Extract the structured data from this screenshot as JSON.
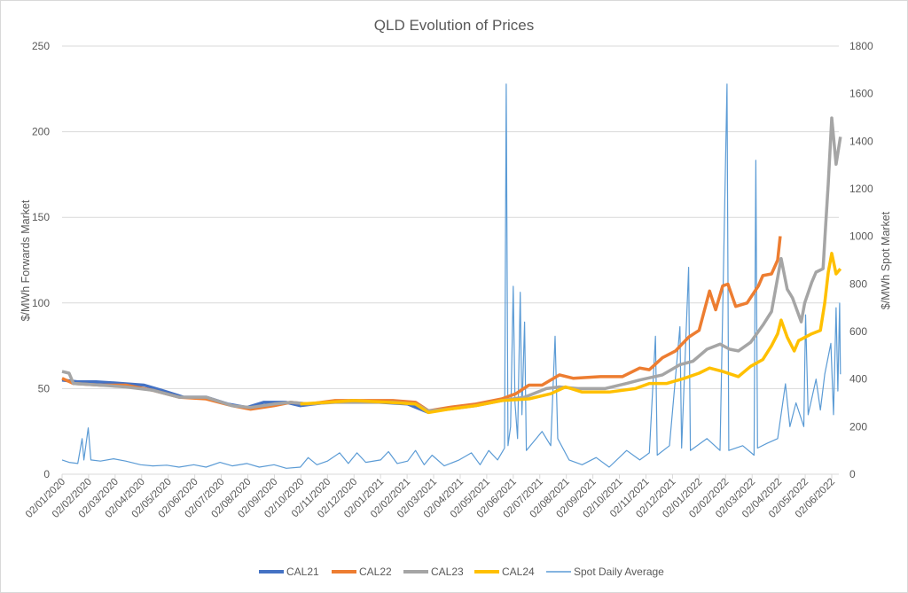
{
  "chart_data": {
    "type": "line",
    "title": "QLD Evolution of Prices",
    "ylabel": "$/MWh Forwards Market",
    "y2label": "$/MWh Spot Market",
    "ylim": [
      0,
      250
    ],
    "y2lim": [
      0,
      1800
    ],
    "yticks": [
      0,
      50,
      100,
      150,
      200,
      250
    ],
    "y2ticks": [
      0,
      200,
      400,
      600,
      800,
      1000,
      1200,
      1400,
      1600,
      1800
    ],
    "xlim": [
      "2020-01-02",
      "2022-06-02"
    ],
    "xticks": [
      "02/01/2020",
      "02/02/2020",
      "02/03/2020",
      "02/04/2020",
      "02/05/2020",
      "02/06/2020",
      "02/07/2020",
      "02/08/2020",
      "02/09/2020",
      "02/10/2020",
      "02/11/2020",
      "02/12/2020",
      "02/01/2021",
      "02/02/2021",
      "02/03/2021",
      "02/04/2021",
      "02/05/2021",
      "02/06/2021",
      "02/07/2021",
      "02/08/2021",
      "02/09/2021",
      "02/10/2021",
      "02/11/2021",
      "02/12/2021",
      "02/01/2022",
      "02/02/2022",
      "02/03/2022",
      "02/04/2022",
      "02/05/2022",
      "02/06/2022"
    ],
    "grid": true,
    "legend": "bottom",
    "series": [
      {
        "name": "CAL21",
        "axis": "left",
        "color": "#4472C4",
        "width": 3.5,
        "points": [
          [
            "2020-01-02",
            55
          ],
          [
            "2020-01-20",
            54
          ],
          [
            "2020-02-10",
            54
          ],
          [
            "2020-03-10",
            53
          ],
          [
            "2020-04-05",
            52
          ],
          [
            "2020-04-25",
            49
          ],
          [
            "2020-05-20",
            45
          ],
          [
            "2020-06-15",
            45
          ],
          [
            "2020-07-10",
            41
          ],
          [
            "2020-08-01",
            39
          ],
          [
            "2020-08-20",
            42
          ],
          [
            "2020-09-15",
            42
          ],
          [
            "2020-10-01",
            40
          ],
          [
            "2020-11-01",
            42
          ],
          [
            "2020-12-01",
            43
          ],
          [
            "2021-01-01",
            42
          ],
          [
            "2021-02-01",
            41
          ],
          [
            "2021-02-25",
            36
          ]
        ]
      },
      {
        "name": "CAL22",
        "axis": "left",
        "color": "#ED7D31",
        "width": 3.5,
        "points": [
          [
            "2020-01-02",
            56
          ],
          [
            "2020-01-15",
            53
          ],
          [
            "2020-02-15",
            52
          ],
          [
            "2020-03-15",
            52
          ],
          [
            "2020-04-15",
            49
          ],
          [
            "2020-05-15",
            45
          ],
          [
            "2020-06-15",
            44
          ],
          [
            "2020-07-15",
            40
          ],
          [
            "2020-08-05",
            38
          ],
          [
            "2020-09-01",
            40
          ],
          [
            "2020-09-20",
            42
          ],
          [
            "2020-10-10",
            41
          ],
          [
            "2020-11-10",
            43
          ],
          [
            "2020-12-10",
            43
          ],
          [
            "2021-01-15",
            43
          ],
          [
            "2021-02-10",
            42
          ],
          [
            "2021-02-25",
            37
          ],
          [
            "2021-03-20",
            39
          ],
          [
            "2021-04-20",
            41
          ],
          [
            "2021-05-20",
            44
          ],
          [
            "2021-06-05",
            47
          ],
          [
            "2021-06-20",
            52
          ],
          [
            "2021-07-05",
            52
          ],
          [
            "2021-07-25",
            58
          ],
          [
            "2021-08-10",
            56
          ],
          [
            "2021-09-10",
            57
          ],
          [
            "2021-10-05",
            57
          ],
          [
            "2021-10-25",
            62
          ],
          [
            "2021-11-05",
            61
          ],
          [
            "2021-11-20",
            68
          ],
          [
            "2021-12-05",
            72
          ],
          [
            "2021-12-20",
            80
          ],
          [
            "2022-01-01",
            84
          ],
          [
            "2022-01-13",
            107
          ],
          [
            "2022-01-20",
            96
          ],
          [
            "2022-01-28",
            110
          ],
          [
            "2022-02-03",
            111
          ],
          [
            "2022-02-12",
            98
          ],
          [
            "2022-02-25",
            100
          ],
          [
            "2022-03-10",
            110
          ],
          [
            "2022-03-15",
            116
          ],
          [
            "2022-03-25",
            117
          ],
          [
            "2022-04-01",
            125
          ],
          [
            "2022-04-04",
            139
          ]
        ]
      },
      {
        "name": "CAL23",
        "axis": "left",
        "color": "#A5A5A5",
        "width": 3.5,
        "points": [
          [
            "2020-01-02",
            60
          ],
          [
            "2020-01-10",
            59
          ],
          [
            "2020-01-15",
            53
          ],
          [
            "2020-02-15",
            52
          ],
          [
            "2020-03-15",
            51
          ],
          [
            "2020-04-15",
            49
          ],
          [
            "2020-05-15",
            45
          ],
          [
            "2020-06-15",
            45
          ],
          [
            "2020-07-15",
            40
          ],
          [
            "2020-08-05",
            39
          ],
          [
            "2020-09-01",
            41
          ],
          [
            "2020-09-20",
            42
          ],
          [
            "2020-10-10",
            41
          ],
          [
            "2020-11-10",
            42
          ],
          [
            "2020-12-10",
            42
          ],
          [
            "2021-01-15",
            42
          ],
          [
            "2021-02-10",
            41
          ],
          [
            "2021-02-25",
            37
          ],
          [
            "2021-03-20",
            38
          ],
          [
            "2021-04-20",
            40
          ],
          [
            "2021-05-20",
            43
          ],
          [
            "2021-06-15",
            45
          ],
          [
            "2021-07-10",
            50
          ],
          [
            "2021-07-25",
            51
          ],
          [
            "2021-08-15",
            50
          ],
          [
            "2021-09-15",
            50
          ],
          [
            "2021-10-10",
            53
          ],
          [
            "2021-10-25",
            55
          ],
          [
            "2021-11-20",
            58
          ],
          [
            "2021-12-10",
            64
          ],
          [
            "2021-12-25",
            66
          ],
          [
            "2022-01-10",
            73
          ],
          [
            "2022-01-25",
            76
          ],
          [
            "2022-02-05",
            73
          ],
          [
            "2022-02-15",
            72
          ],
          [
            "2022-03-01",
            77
          ],
          [
            "2022-03-15",
            87
          ],
          [
            "2022-03-25",
            95
          ],
          [
            "2022-04-05",
            126
          ],
          [
            "2022-04-12",
            108
          ],
          [
            "2022-04-18",
            103
          ],
          [
            "2022-04-28",
            89
          ],
          [
            "2022-05-02",
            100
          ],
          [
            "2022-05-10",
            112
          ],
          [
            "2022-05-15",
            118
          ],
          [
            "2022-05-23",
            120
          ],
          [
            "2022-05-26",
            145
          ],
          [
            "2022-05-29",
            170
          ],
          [
            "2022-06-02",
            208
          ],
          [
            "2022-06-07",
            181
          ],
          [
            "2022-06-12",
            197
          ]
        ]
      },
      {
        "name": "CAL24",
        "axis": "left",
        "color": "#FFC000",
        "width": 3.5,
        "points": [
          [
            "2020-10-01",
            41
          ],
          [
            "2020-11-01",
            42
          ],
          [
            "2020-12-01",
            43
          ],
          [
            "2021-01-10",
            42
          ],
          [
            "2021-02-10",
            41
          ],
          [
            "2021-02-25",
            36
          ],
          [
            "2021-03-20",
            38
          ],
          [
            "2021-04-20",
            40
          ],
          [
            "2021-05-20",
            43
          ],
          [
            "2021-06-20",
            44
          ],
          [
            "2021-07-15",
            47
          ],
          [
            "2021-08-01",
            51
          ],
          [
            "2021-08-20",
            48
          ],
          [
            "2021-09-20",
            48
          ],
          [
            "2021-10-20",
            50
          ],
          [
            "2021-11-05",
            53
          ],
          [
            "2021-11-25",
            53
          ],
          [
            "2021-12-15",
            56
          ],
          [
            "2022-01-01",
            59
          ],
          [
            "2022-01-13",
            62
          ],
          [
            "2022-01-28",
            60
          ],
          [
            "2022-02-15",
            57
          ],
          [
            "2022-03-01",
            63
          ],
          [
            "2022-03-15",
            67
          ],
          [
            "2022-03-25",
            75
          ],
          [
            "2022-04-01",
            82
          ],
          [
            "2022-04-05",
            90
          ],
          [
            "2022-04-12",
            80
          ],
          [
            "2022-04-20",
            72
          ],
          [
            "2022-04-25",
            78
          ],
          [
            "2022-05-10",
            82
          ],
          [
            "2022-05-20",
            84
          ],
          [
            "2022-05-25",
            100
          ],
          [
            "2022-05-29",
            118
          ],
          [
            "2022-06-02",
            129
          ],
          [
            "2022-06-07",
            117
          ],
          [
            "2022-06-12",
            120
          ]
        ]
      },
      {
        "name": "Spot Daily Average",
        "axis": "right",
        "color": "#5B9BD5",
        "width": 1.2,
        "points": [
          [
            "2020-01-02",
            60
          ],
          [
            "2020-01-10",
            50
          ],
          [
            "2020-01-20",
            45
          ],
          [
            "2020-01-25",
            150
          ],
          [
            "2020-01-27",
            60
          ],
          [
            "2020-02-01",
            195
          ],
          [
            "2020-02-04",
            60
          ],
          [
            "2020-02-15",
            55
          ],
          [
            "2020-03-01",
            65
          ],
          [
            "2020-03-15",
            55
          ],
          [
            "2020-04-01",
            40
          ],
          [
            "2020-04-15",
            35
          ],
          [
            "2020-05-01",
            38
          ],
          [
            "2020-05-15",
            30
          ],
          [
            "2020-06-01",
            40
          ],
          [
            "2020-06-15",
            30
          ],
          [
            "2020-07-01",
            50
          ],
          [
            "2020-07-15",
            35
          ],
          [
            "2020-08-01",
            45
          ],
          [
            "2020-08-15",
            30
          ],
          [
            "2020-09-01",
            40
          ],
          [
            "2020-09-15",
            25
          ],
          [
            "2020-10-01",
            30
          ],
          [
            "2020-10-10",
            70
          ],
          [
            "2020-10-20",
            40
          ],
          [
            "2020-11-01",
            55
          ],
          [
            "2020-11-15",
            90
          ],
          [
            "2020-11-25",
            45
          ],
          [
            "2020-12-05",
            90
          ],
          [
            "2020-12-15",
            50
          ],
          [
            "2021-01-01",
            60
          ],
          [
            "2021-01-10",
            95
          ],
          [
            "2021-01-20",
            45
          ],
          [
            "2021-02-01",
            55
          ],
          [
            "2021-02-10",
            100
          ],
          [
            "2021-02-20",
            40
          ],
          [
            "2021-03-01",
            80
          ],
          [
            "2021-03-15",
            35
          ],
          [
            "2021-04-01",
            60
          ],
          [
            "2021-04-15",
            90
          ],
          [
            "2021-04-25",
            40
          ],
          [
            "2021-05-05",
            100
          ],
          [
            "2021-05-15",
            60
          ],
          [
            "2021-05-23",
            110
          ],
          [
            "2021-05-25",
            1640
          ],
          [
            "2021-05-27",
            120
          ],
          [
            "2021-05-30",
            200
          ],
          [
            "2021-06-02",
            790
          ],
          [
            "2021-06-04",
            300
          ],
          [
            "2021-06-07",
            150
          ],
          [
            "2021-06-10",
            765
          ],
          [
            "2021-06-12",
            250
          ],
          [
            "2021-06-15",
            640
          ],
          [
            "2021-06-17",
            100
          ],
          [
            "2021-07-05",
            180
          ],
          [
            "2021-07-15",
            120
          ],
          [
            "2021-07-20",
            580
          ],
          [
            "2021-07-23",
            150
          ],
          [
            "2021-08-05",
            60
          ],
          [
            "2021-08-20",
            40
          ],
          [
            "2021-09-05",
            70
          ],
          [
            "2021-09-20",
            30
          ],
          [
            "2021-10-10",
            100
          ],
          [
            "2021-10-25",
            60
          ],
          [
            "2021-11-05",
            90
          ],
          [
            "2021-11-12",
            580
          ],
          [
            "2021-11-14",
            80
          ],
          [
            "2021-11-28",
            120
          ],
          [
            "2021-12-10",
            620
          ],
          [
            "2021-12-12",
            110
          ],
          [
            "2021-12-20",
            870
          ],
          [
            "2021-12-22",
            100
          ],
          [
            "2022-01-10",
            150
          ],
          [
            "2022-01-25",
            100
          ],
          [
            "2022-02-02",
            1640
          ],
          [
            "2022-02-04",
            100
          ],
          [
            "2022-02-20",
            120
          ],
          [
            "2022-03-05",
            80
          ],
          [
            "2022-03-07",
            1320
          ],
          [
            "2022-03-09",
            110
          ],
          [
            "2022-03-20",
            130
          ],
          [
            "2022-04-01",
            150
          ],
          [
            "2022-04-10",
            380
          ],
          [
            "2022-04-15",
            200
          ],
          [
            "2022-04-22",
            300
          ],
          [
            "2022-05-01",
            200
          ],
          [
            "2022-05-03",
            670
          ],
          [
            "2022-05-06",
            250
          ],
          [
            "2022-05-15",
            400
          ],
          [
            "2022-05-20",
            270
          ],
          [
            "2022-05-25",
            420
          ],
          [
            "2022-06-01",
            550
          ],
          [
            "2022-06-04",
            250
          ],
          [
            "2022-06-07",
            700
          ],
          [
            "2022-06-09",
            350
          ],
          [
            "2022-06-11",
            720
          ],
          [
            "2022-06-12",
            420
          ]
        ]
      }
    ]
  }
}
